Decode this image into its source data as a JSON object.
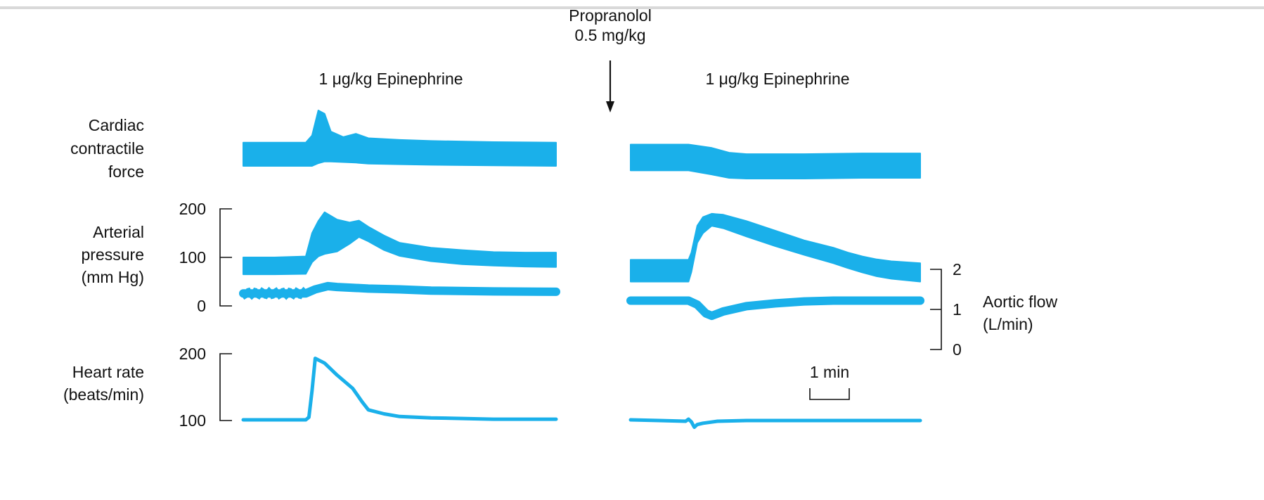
{
  "chart_data": {
    "type": "line",
    "colors": {
      "trace": "#1ab0ea",
      "ink": "#111111"
    },
    "annotations": {
      "propranolol_line1": "Propranolol",
      "propranolol_line2": "0.5 mg/kg",
      "epi_left": "1 μg/kg Epinephrine",
      "epi_right": "1 μg/kg Epinephrine",
      "time_scale": "1 min"
    },
    "panels": [
      {
        "id": "cardiac-contractile-force",
        "label_lines": [
          "Cardiac",
          "contractile",
          "force"
        ],
        "ticks": []
      },
      {
        "id": "arterial-pressure",
        "label_lines": [
          "Arterial",
          "pressure",
          "(mm Hg)"
        ],
        "ticks": [
          "200",
          "100",
          "0"
        ],
        "ylim": [
          0,
          200
        ]
      },
      {
        "id": "heart-rate",
        "label_lines": [
          "Heart rate",
          "(beats/min)"
        ],
        "ticks": [
          "200",
          "100"
        ],
        "ylim": [
          100,
          200
        ]
      }
    ],
    "right_axis": {
      "label_lines": [
        "Aortic flow",
        "(L/min)"
      ],
      "ticks": [
        "2",
        "1",
        "0"
      ],
      "ylim": [
        0,
        2
      ]
    },
    "series": [
      {
        "name": "Cardiac contractile force",
        "segment": "before-propranolol",
        "t": [
          0,
          10,
          20,
          22,
          24,
          26,
          28,
          32,
          36,
          40,
          50,
          60,
          80,
          100
        ],
        "top": [
          0.42,
          0.42,
          0.42,
          0.55,
          1.0,
          0.94,
          0.62,
          0.52,
          0.58,
          0.5,
          0.47,
          0.45,
          0.43,
          0.42
        ],
        "bottom": [
          0.0,
          0.0,
          0.0,
          0.0,
          0.05,
          0.08,
          0.08,
          0.07,
          0.06,
          0.04,
          0.03,
          0.02,
          0.01,
          0.0
        ]
      },
      {
        "name": "Cardiac contractile force",
        "segment": "after-propranolol",
        "t": [
          0,
          20,
          28,
          34,
          40,
          60,
          80,
          100
        ],
        "top": [
          0.5,
          0.5,
          0.45,
          0.38,
          0.36,
          0.36,
          0.37,
          0.37
        ],
        "bottom": [
          0.12,
          0.12,
          0.06,
          0.01,
          0.0,
          0.0,
          0.01,
          0.01
        ]
      },
      {
        "name": "Arterial pressure",
        "segment": "before-propranolol",
        "t": [
          0,
          10,
          20,
          22,
          24,
          26,
          30,
          34,
          37,
          40,
          45,
          50,
          60,
          70,
          80,
          90,
          100
        ],
        "top": [
          100,
          100,
          102,
          150,
          175,
          193,
          178,
          172,
          176,
          163,
          145,
          130,
          120,
          115,
          111,
          110,
          110
        ],
        "bottom": [
          65,
          65,
          66,
          90,
          102,
          107,
          112,
          128,
          142,
          133,
          115,
          103,
          92,
          86,
          83,
          81,
          80
        ]
      },
      {
        "name": "Arterial pressure",
        "segment": "after-propranolol",
        "t": [
          0,
          10,
          20,
          21,
          23,
          25,
          28,
          32,
          40,
          50,
          60,
          70,
          75,
          80,
          85,
          90,
          100
        ],
        "top": [
          95,
          95,
          95,
          110,
          165,
          183,
          190,
          188,
          175,
          155,
          135,
          120,
          110,
          102,
          96,
          92,
          88
        ],
        "bottom": [
          50,
          50,
          50,
          70,
          130,
          150,
          165,
          160,
          143,
          123,
          105,
          88,
          78,
          69,
          61,
          56,
          50
        ]
      },
      {
        "name": "Aortic flow",
        "segment": "before-propranolol",
        "t": [
          0,
          5,
          10,
          20,
          23,
          27,
          30,
          35,
          40,
          50,
          60,
          80,
          100
        ],
        "v": [
          1.4,
          1.4,
          1.4,
          1.4,
          1.5,
          1.58,
          1.56,
          1.54,
          1.52,
          1.5,
          1.47,
          1.45,
          1.44
        ]
      },
      {
        "name": "Aortic flow",
        "segment": "after-propranolol",
        "t": [
          0,
          10,
          20,
          23,
          26,
          28,
          32,
          40,
          50,
          60,
          70,
          80,
          90,
          100
        ],
        "v": [
          1.22,
          1.22,
          1.22,
          1.12,
          0.9,
          0.84,
          0.95,
          1.08,
          1.15,
          1.2,
          1.22,
          1.22,
          1.22,
          1.22
        ]
      },
      {
        "name": "Heart rate",
        "segment": "before-propranolol",
        "t": [
          0,
          10,
          20,
          21,
          22,
          23,
          26,
          30,
          35,
          38,
          40,
          45,
          50,
          60,
          70,
          80,
          90,
          100
        ],
        "v": [
          101,
          101,
          101,
          105,
          145,
          193,
          186,
          168,
          148,
          128,
          116,
          110,
          106,
          104,
          103,
          102,
          102,
          102
        ]
      },
      {
        "name": "Heart rate",
        "segment": "after-propranolol",
        "t": [
          0,
          10,
          19,
          20,
          21,
          22,
          23,
          25,
          30,
          40,
          60,
          80,
          100
        ],
        "v": [
          101,
          100,
          99,
          102,
          98,
          90,
          94,
          96,
          99,
          100,
          100,
          100,
          100
        ]
      }
    ]
  }
}
